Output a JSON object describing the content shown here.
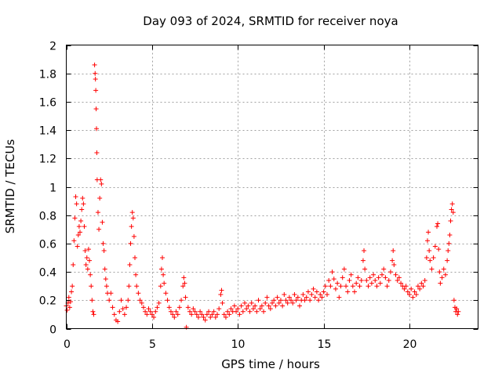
{
  "chart_data": {
    "type": "scatter",
    "title": "Day 093 of 2024, SRMTID for receiver noya",
    "xlabel": "GPS time / hours",
    "ylabel": "SRMTID / TECUs",
    "xlim": [
      0,
      24
    ],
    "ylim": [
      0,
      2
    ],
    "xticks": [
      0,
      5,
      10,
      15,
      20
    ],
    "yticks": [
      0,
      0.2,
      0.4,
      0.6,
      0.8,
      1,
      1.2,
      1.4,
      1.6,
      1.8,
      2
    ],
    "xtick_labels": [
      "0",
      "5",
      "10",
      "15",
      "20"
    ],
    "ytick_labels": [
      "0",
      "0.2",
      "0.4",
      "0.6",
      "0.8",
      "1",
      "1.2",
      "1.4",
      "1.6",
      "1.8",
      "2"
    ],
    "grid": true,
    "marker": "+",
    "color": "#ff0000",
    "series": [
      {
        "name": "SRMTID",
        "points": [
          [
            0.0,
            0.16
          ],
          [
            0.05,
            0.13
          ],
          [
            0.1,
            0.18
          ],
          [
            0.15,
            0.22
          ],
          [
            0.2,
            0.15
          ],
          [
            0.25,
            0.19
          ],
          [
            0.3,
            0.26
          ],
          [
            0.35,
            0.3
          ],
          [
            0.4,
            0.45
          ],
          [
            0.45,
            0.62
          ],
          [
            0.5,
            0.78
          ],
          [
            0.55,
            0.93
          ],
          [
            0.6,
            0.88
          ],
          [
            0.65,
            0.58
          ],
          [
            0.7,
            0.66
          ],
          [
            0.75,
            0.72
          ],
          [
            0.8,
            0.68
          ],
          [
            0.85,
            0.76
          ],
          [
            0.9,
            0.84
          ],
          [
            0.95,
            0.92
          ],
          [
            1.0,
            0.88
          ],
          [
            1.05,
            0.72
          ],
          [
            1.1,
            0.55
          ],
          [
            1.15,
            0.45
          ],
          [
            1.2,
            0.5
          ],
          [
            1.25,
            0.42
          ],
          [
            1.3,
            0.56
          ],
          [
            1.35,
            0.48
          ],
          [
            1.4,
            0.38
          ],
          [
            1.45,
            0.3
          ],
          [
            1.5,
            0.2
          ],
          [
            1.55,
            0.12
          ],
          [
            1.6,
            0.1
          ],
          [
            1.65,
            1.86
          ],
          [
            1.68,
            1.8
          ],
          [
            1.7,
            1.76
          ],
          [
            1.72,
            1.68
          ],
          [
            1.74,
            1.55
          ],
          [
            1.76,
            1.41
          ],
          [
            1.78,
            1.24
          ],
          [
            1.8,
            1.05
          ],
          [
            1.85,
            0.82
          ],
          [
            1.9,
            0.7
          ],
          [
            1.95,
            0.92
          ],
          [
            2.0,
            1.05
          ],
          [
            2.05,
            1.02
          ],
          [
            2.1,
            0.75
          ],
          [
            2.15,
            0.6
          ],
          [
            2.2,
            0.55
          ],
          [
            2.25,
            0.42
          ],
          [
            2.3,
            0.35
          ],
          [
            2.35,
            0.3
          ],
          [
            2.4,
            0.25
          ],
          [
            2.5,
            0.2
          ],
          [
            2.6,
            0.25
          ],
          [
            2.7,
            0.15
          ],
          [
            2.8,
            0.1
          ],
          [
            2.9,
            0.06
          ],
          [
            3.0,
            0.05
          ],
          [
            3.1,
            0.12
          ],
          [
            3.2,
            0.2
          ],
          [
            3.3,
            0.14
          ],
          [
            3.4,
            0.1
          ],
          [
            3.5,
            0.15
          ],
          [
            3.6,
            0.2
          ],
          [
            3.65,
            0.3
          ],
          [
            3.7,
            0.45
          ],
          [
            3.75,
            0.6
          ],
          [
            3.8,
            0.72
          ],
          [
            3.85,
            0.82
          ],
          [
            3.9,
            0.78
          ],
          [
            3.95,
            0.65
          ],
          [
            4.0,
            0.5
          ],
          [
            4.05,
            0.38
          ],
          [
            4.1,
            0.3
          ],
          [
            4.2,
            0.25
          ],
          [
            4.3,
            0.2
          ],
          [
            4.4,
            0.18
          ],
          [
            4.5,
            0.15
          ],
          [
            4.6,
            0.12
          ],
          [
            4.7,
            0.1
          ],
          [
            4.8,
            0.14
          ],
          [
            4.9,
            0.12
          ],
          [
            5.0,
            0.1
          ],
          [
            5.1,
            0.08
          ],
          [
            5.2,
            0.12
          ],
          [
            5.3,
            0.15
          ],
          [
            5.4,
            0.18
          ],
          [
            5.5,
            0.3
          ],
          [
            5.55,
            0.42
          ],
          [
            5.6,
            0.5
          ],
          [
            5.65,
            0.38
          ],
          [
            5.7,
            0.32
          ],
          [
            5.8,
            0.25
          ],
          [
            5.9,
            0.2
          ],
          [
            6.0,
            0.15
          ],
          [
            6.1,
            0.12
          ],
          [
            6.2,
            0.1
          ],
          [
            6.3,
            0.08
          ],
          [
            6.4,
            0.12
          ],
          [
            6.5,
            0.1
          ],
          [
            6.6,
            0.15
          ],
          [
            6.7,
            0.2
          ],
          [
            6.8,
            0.3
          ],
          [
            6.85,
            0.36
          ],
          [
            6.9,
            0.32
          ],
          [
            6.95,
            0.22
          ],
          [
            7.0,
            0.01
          ],
          [
            7.1,
            0.15
          ],
          [
            7.2,
            0.12
          ],
          [
            7.3,
            0.1
          ],
          [
            7.4,
            0.14
          ],
          [
            7.5,
            0.12
          ],
          [
            7.6,
            0.1
          ],
          [
            7.7,
            0.08
          ],
          [
            7.8,
            0.12
          ],
          [
            7.9,
            0.1
          ],
          [
            8.0,
            0.08
          ],
          [
            8.1,
            0.06
          ],
          [
            8.2,
            0.1
          ],
          [
            8.3,
            0.12
          ],
          [
            8.4,
            0.08
          ],
          [
            8.5,
            0.1
          ],
          [
            8.6,
            0.12
          ],
          [
            8.7,
            0.08
          ],
          [
            8.8,
            0.1
          ],
          [
            8.9,
            0.14
          ],
          [
            9.0,
            0.24
          ],
          [
            9.05,
            0.27
          ],
          [
            9.1,
            0.18
          ],
          [
            9.2,
            0.1
          ],
          [
            9.3,
            0.08
          ],
          [
            9.4,
            0.12
          ],
          [
            9.5,
            0.1
          ],
          [
            9.6,
            0.14
          ],
          [
            9.7,
            0.12
          ],
          [
            9.8,
            0.16
          ],
          [
            9.9,
            0.12
          ],
          [
            10.0,
            0.14
          ],
          [
            10.1,
            0.1
          ],
          [
            10.2,
            0.16
          ],
          [
            10.3,
            0.12
          ],
          [
            10.4,
            0.18
          ],
          [
            10.5,
            0.14
          ],
          [
            10.6,
            0.16
          ],
          [
            10.7,
            0.12
          ],
          [
            10.8,
            0.18
          ],
          [
            10.9,
            0.14
          ],
          [
            11.0,
            0.16
          ],
          [
            11.1,
            0.12
          ],
          [
            11.2,
            0.2
          ],
          [
            11.3,
            0.14
          ],
          [
            11.4,
            0.16
          ],
          [
            11.5,
            0.12
          ],
          [
            11.6,
            0.18
          ],
          [
            11.7,
            0.22
          ],
          [
            11.8,
            0.16
          ],
          [
            11.9,
            0.14
          ],
          [
            12.0,
            0.18
          ],
          [
            12.1,
            0.2
          ],
          [
            12.2,
            0.16
          ],
          [
            12.3,
            0.22
          ],
          [
            12.4,
            0.18
          ],
          [
            12.5,
            0.2
          ],
          [
            12.6,
            0.16
          ],
          [
            12.7,
            0.24
          ],
          [
            12.8,
            0.2
          ],
          [
            12.9,
            0.18
          ],
          [
            13.0,
            0.22
          ],
          [
            13.1,
            0.2
          ],
          [
            13.2,
            0.18
          ],
          [
            13.3,
            0.24
          ],
          [
            13.4,
            0.2
          ],
          [
            13.5,
            0.22
          ],
          [
            13.6,
            0.16
          ],
          [
            13.7,
            0.2
          ],
          [
            13.8,
            0.24
          ],
          [
            13.9,
            0.2
          ],
          [
            14.0,
            0.22
          ],
          [
            14.1,
            0.26
          ],
          [
            14.2,
            0.2
          ],
          [
            14.3,
            0.24
          ],
          [
            14.4,
            0.28
          ],
          [
            14.5,
            0.22
          ],
          [
            14.6,
            0.26
          ],
          [
            14.7,
            0.2
          ],
          [
            14.8,
            0.24
          ],
          [
            14.9,
            0.22
          ],
          [
            15.0,
            0.26
          ],
          [
            15.1,
            0.3
          ],
          [
            15.2,
            0.24
          ],
          [
            15.3,
            0.34
          ],
          [
            15.4,
            0.3
          ],
          [
            15.5,
            0.4
          ],
          [
            15.6,
            0.35
          ],
          [
            15.7,
            0.28
          ],
          [
            15.8,
            0.32
          ],
          [
            15.9,
            0.22
          ],
          [
            16.0,
            0.3
          ],
          [
            16.1,
            0.36
          ],
          [
            16.2,
            0.42
          ],
          [
            16.3,
            0.3
          ],
          [
            16.4,
            0.26
          ],
          [
            16.5,
            0.34
          ],
          [
            16.6,
            0.38
          ],
          [
            16.7,
            0.3
          ],
          [
            16.8,
            0.26
          ],
          [
            16.9,
            0.32
          ],
          [
            17.0,
            0.36
          ],
          [
            17.1,
            0.3
          ],
          [
            17.2,
            0.34
          ],
          [
            17.3,
            0.48
          ],
          [
            17.35,
            0.55
          ],
          [
            17.4,
            0.42
          ],
          [
            17.5,
            0.34
          ],
          [
            17.6,
            0.3
          ],
          [
            17.7,
            0.36
          ],
          [
            17.8,
            0.32
          ],
          [
            17.9,
            0.38
          ],
          [
            18.0,
            0.34
          ],
          [
            18.1,
            0.3
          ],
          [
            18.2,
            0.36
          ],
          [
            18.3,
            0.32
          ],
          [
            18.4,
            0.38
          ],
          [
            18.5,
            0.42
          ],
          [
            18.6,
            0.36
          ],
          [
            18.7,
            0.3
          ],
          [
            18.8,
            0.34
          ],
          [
            18.9,
            0.4
          ],
          [
            19.0,
            0.48
          ],
          [
            19.05,
            0.55
          ],
          [
            19.1,
            0.45
          ],
          [
            19.2,
            0.38
          ],
          [
            19.3,
            0.34
          ],
          [
            19.4,
            0.36
          ],
          [
            19.5,
            0.32
          ],
          [
            19.6,
            0.3
          ],
          [
            19.7,
            0.28
          ],
          [
            19.8,
            0.3
          ],
          [
            19.9,
            0.26
          ],
          [
            20.0,
            0.24
          ],
          [
            20.1,
            0.28
          ],
          [
            20.2,
            0.22
          ],
          [
            20.3,
            0.26
          ],
          [
            20.4,
            0.24
          ],
          [
            20.5,
            0.3
          ],
          [
            20.6,
            0.28
          ],
          [
            20.7,
            0.32
          ],
          [
            20.8,
            0.3
          ],
          [
            20.9,
            0.34
          ],
          [
            21.0,
            0.5
          ],
          [
            21.05,
            0.62
          ],
          [
            21.1,
            0.68
          ],
          [
            21.15,
            0.55
          ],
          [
            21.2,
            0.48
          ],
          [
            21.3,
            0.42
          ],
          [
            21.4,
            0.5
          ],
          [
            21.5,
            0.58
          ],
          [
            21.6,
            0.72
          ],
          [
            21.65,
            0.74
          ],
          [
            21.7,
            0.56
          ],
          [
            21.75,
            0.4
          ],
          [
            21.8,
            0.32
          ],
          [
            21.9,
            0.36
          ],
          [
            22.0,
            0.42
          ],
          [
            22.1,
            0.38
          ],
          [
            22.2,
            0.48
          ],
          [
            22.25,
            0.55
          ],
          [
            22.3,
            0.6
          ],
          [
            22.35,
            0.66
          ],
          [
            22.4,
            0.76
          ],
          [
            22.45,
            0.84
          ],
          [
            22.5,
            0.88
          ],
          [
            22.55,
            0.82
          ],
          [
            22.6,
            0.2
          ],
          [
            22.65,
            0.15
          ],
          [
            22.7,
            0.12
          ],
          [
            22.75,
            0.14
          ],
          [
            22.8,
            0.1
          ],
          [
            22.85,
            0.12
          ]
        ]
      }
    ]
  }
}
